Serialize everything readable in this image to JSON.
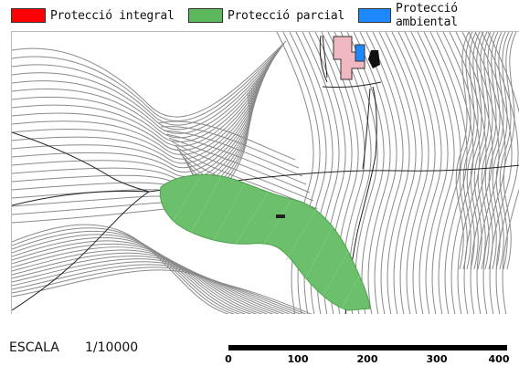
{
  "legend": [
    {
      "label": "Protecció integral",
      "color": "#ff0000"
    },
    {
      "label": "Protecció parcial",
      "color": "#5cb85c"
    },
    {
      "label": "Protecció ambiental",
      "color": "#1e88ff"
    }
  ],
  "map": {
    "protected_area_color": "#6cc06c",
    "building_fill": "#f0b8c0",
    "pond_fill": "#1e88ff",
    "contour_color": "#8a8a8a"
  },
  "scale": {
    "label": "ESCALA",
    "ratio": "1/10000",
    "ticks": [
      "0",
      "100",
      "200",
      "300",
      "400"
    ]
  }
}
